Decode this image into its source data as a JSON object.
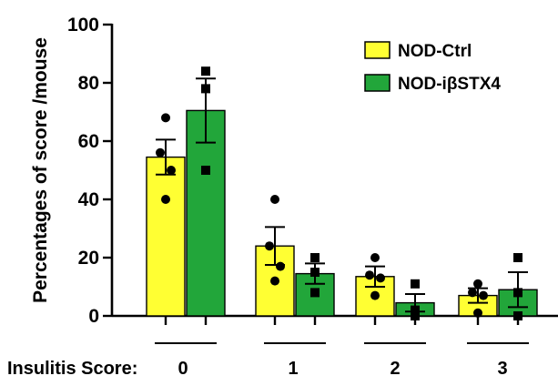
{
  "chart_data": {
    "type": "bar",
    "ylabel": "Percentages of score /mouse",
    "xlabel": "Insulitis Score:",
    "categories": [
      "0",
      "1",
      "2",
      "3"
    ],
    "ylim": [
      0,
      100
    ],
    "yticks": [
      0,
      20,
      40,
      60,
      80,
      100
    ],
    "legend_position": "top-right",
    "series": [
      {
        "name": "NOD-Ctrl",
        "color": "#ffff33",
        "marker": "circle",
        "values": [
          54.5,
          24,
          13.5,
          7
        ],
        "error": [
          6,
          6.5,
          3.5,
          2.5
        ],
        "points": [
          [
            68,
            56,
            50,
            40
          ],
          [
            40,
            24,
            17,
            12
          ],
          [
            20,
            14,
            13,
            7
          ],
          [
            11,
            8,
            7,
            1
          ]
        ]
      },
      {
        "name": "NOD-iβSTX4",
        "color": "#22a63a",
        "marker": "square",
        "values": [
          70.5,
          14.5,
          4.5,
          9
        ],
        "error": [
          11,
          3.5,
          3,
          6
        ],
        "points": [
          [
            84,
            78,
            50
          ],
          [
            20,
            15,
            8
          ],
          [
            11,
            2,
            0
          ],
          [
            20,
            8,
            0
          ]
        ]
      }
    ]
  }
}
